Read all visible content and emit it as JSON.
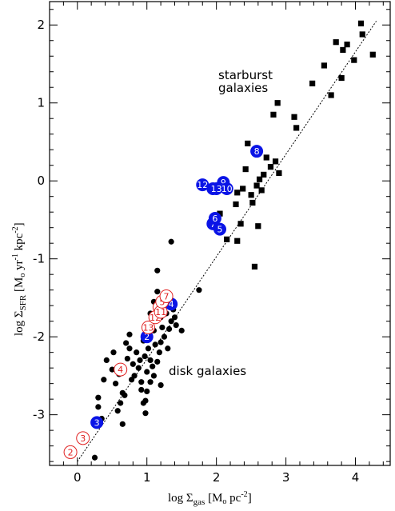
{
  "chart_data": {
    "type": "scatter",
    "xlabel_main": "log Σ",
    "xlabel_sub": "gas",
    "xlabel_rest": " [M",
    "xlabel_sun": "o",
    "xlabel_unit": " pc",
    "xlabel_exp": "-2",
    "xlabel_close": "]",
    "ylabel_main": "log Σ",
    "ylabel_sub": "SFR",
    "ylabel_rest": " [M",
    "ylabel_sun": "o",
    "ylabel_unit1": " yr",
    "ylabel_exp1": "-1",
    "ylabel_unit2": " kpc",
    "ylabel_exp2": "-2",
    "ylabel_close": "]",
    "xlim": [
      -0.4,
      4.5
    ],
    "ylim": [
      -3.65,
      2.3
    ],
    "xticks": [
      0,
      1,
      2,
      3,
      4
    ],
    "xtick_labels": [
      "0",
      "1",
      "2",
      "3",
      "4"
    ],
    "yticks": [
      -3,
      -2,
      -1,
      0,
      1,
      2
    ],
    "ytick_labels": [
      "-3",
      "-2",
      "-1",
      "0",
      "1",
      "2"
    ],
    "grid": false,
    "fit_line": {
      "x": [
        0,
        4.3
      ],
      "y": [
        -3.6,
        2.05
      ],
      "style": "dotted"
    },
    "annotations": {
      "starburst_line1": "starburst",
      "starburst_line2": "galaxies",
      "disk": "disk galaxies"
    },
    "colors": {
      "disk": "#000000",
      "starburst": "#000000",
      "blue": "#0a14e6",
      "red": "#e02020"
    },
    "series": [
      {
        "marker": "circle-filled-black",
        "points": [
          [
            0.25,
            -3.55
          ],
          [
            0.35,
            -3.05
          ],
          [
            0.3,
            -2.9
          ],
          [
            0.3,
            -2.78
          ],
          [
            0.38,
            -2.55
          ],
          [
            0.42,
            -2.3
          ],
          [
            0.5,
            -2.42
          ],
          [
            0.52,
            -2.2
          ],
          [
            0.55,
            -2.6
          ],
          [
            0.6,
            -2.48
          ],
          [
            0.58,
            -2.95
          ],
          [
            0.65,
            -3.12
          ],
          [
            0.68,
            -2.75
          ],
          [
            0.7,
            -2.08
          ],
          [
            0.72,
            -2.28
          ],
          [
            0.75,
            -2.15
          ],
          [
            0.78,
            -2.55
          ],
          [
            0.8,
            -2.35
          ],
          [
            0.82,
            -2.5
          ],
          [
            0.85,
            -2.2
          ],
          [
            0.88,
            -2.4
          ],
          [
            0.9,
            -2.3
          ],
          [
            0.92,
            -2.58
          ],
          [
            0.95,
            -2.05
          ],
          [
            0.95,
            -2.85
          ],
          [
            0.97,
            -2.25
          ],
          [
            1.0,
            -1.95
          ],
          [
            1.0,
            -2.45
          ],
          [
            1.0,
            -2.7
          ],
          [
            1.02,
            -2.15
          ],
          [
            1.05,
            -2.3
          ],
          [
            1.05,
            -2.58
          ],
          [
            1.08,
            -2.38
          ],
          [
            1.1,
            -1.92
          ],
          [
            1.1,
            -2.5
          ],
          [
            1.12,
            -2.1
          ],
          [
            1.15,
            -2.32
          ],
          [
            1.18,
            -2.2
          ],
          [
            1.2,
            -1.75
          ],
          [
            1.2,
            -2.62
          ],
          [
            1.22,
            -1.88
          ],
          [
            1.25,
            -2.0
          ],
          [
            1.28,
            -1.7
          ],
          [
            1.3,
            -1.55
          ],
          [
            1.32,
            -1.9
          ],
          [
            1.35,
            -1.8
          ],
          [
            1.38,
            -1.65
          ],
          [
            1.4,
            -1.75
          ],
          [
            1.42,
            -1.85
          ],
          [
            1.5,
            -1.92
          ],
          [
            1.05,
            -1.7
          ],
          [
            1.1,
            -1.55
          ],
          [
            1.12,
            -1.78
          ],
          [
            1.15,
            -1.42
          ],
          [
            1.15,
            -1.15
          ],
          [
            0.98,
            -2.82
          ],
          [
            0.98,
            -2.98
          ],
          [
            0.92,
            -2.68
          ],
          [
            0.62,
            -2.85
          ],
          [
            0.65,
            -2.72
          ],
          [
            1.35,
            -0.78
          ],
          [
            1.75,
            -1.4
          ],
          [
            0.75,
            -1.97
          ],
          [
            1.2,
            -2.07
          ],
          [
            1.3,
            -2.15
          ]
        ]
      },
      {
        "marker": "square-filled-black",
        "points": [
          [
            2.05,
            -0.42
          ],
          [
            2.15,
            -0.75
          ],
          [
            2.28,
            -0.3
          ],
          [
            2.3,
            -0.15
          ],
          [
            2.35,
            -0.55
          ],
          [
            2.38,
            -0.1
          ],
          [
            2.42,
            0.15
          ],
          [
            2.45,
            0.48
          ],
          [
            2.5,
            -0.18
          ],
          [
            2.52,
            -0.28
          ],
          [
            2.55,
            -1.1
          ],
          [
            2.58,
            -0.06
          ],
          [
            2.6,
            -0.58
          ],
          [
            2.62,
            0.02
          ],
          [
            2.65,
            -0.12
          ],
          [
            2.68,
            0.08
          ],
          [
            2.72,
            0.3
          ],
          [
            2.78,
            0.18
          ],
          [
            2.82,
            0.85
          ],
          [
            2.85,
            0.25
          ],
          [
            2.88,
            1.0
          ],
          [
            2.9,
            0.1
          ],
          [
            3.12,
            0.82
          ],
          [
            3.15,
            0.68
          ],
          [
            3.38,
            1.25
          ],
          [
            3.55,
            1.48
          ],
          [
            3.65,
            1.1
          ],
          [
            3.72,
            1.78
          ],
          [
            3.8,
            1.32
          ],
          [
            3.82,
            1.68
          ],
          [
            3.88,
            1.75
          ],
          [
            3.98,
            1.55
          ],
          [
            4.08,
            2.02
          ],
          [
            4.1,
            1.88
          ],
          [
            4.25,
            1.62
          ],
          [
            2.3,
            -0.77
          ]
        ]
      }
    ],
    "labeled_points": [
      {
        "x": 0.28,
        "y": -3.1,
        "label": "3",
        "style": "blue"
      },
      {
        "x": 1.0,
        "y": -2.0,
        "label": "2",
        "style": "blue"
      },
      {
        "x": 1.35,
        "y": -1.58,
        "label": "4",
        "style": "blue"
      },
      {
        "x": 1.95,
        "y": -0.55,
        "label": "7",
        "style": "blue"
      },
      {
        "x": 1.98,
        "y": -0.48,
        "label": "6",
        "style": "blue"
      },
      {
        "x": 2.05,
        "y": -0.62,
        "label": "5",
        "style": "blue"
      },
      {
        "x": 1.8,
        "y": -0.05,
        "label": "12",
        "style": "blue"
      },
      {
        "x": 1.95,
        "y": -0.1,
        "label": "8",
        "style": "blue"
      },
      {
        "x": 2.1,
        "y": -0.02,
        "label": "9",
        "style": "blue"
      },
      {
        "x": 2.15,
        "y": -0.1,
        "label": "10",
        "style": "blue"
      },
      {
        "x": 2.0,
        "y": -0.1,
        "label": "13",
        "style": "blue"
      },
      {
        "x": 2.58,
        "y": 0.38,
        "label": "8",
        "style": "blue"
      },
      {
        "x": -0.1,
        "y": -3.48,
        "label": "2",
        "style": "red"
      },
      {
        "x": 0.08,
        "y": -3.3,
        "label": "3",
        "style": "red"
      },
      {
        "x": 0.62,
        "y": -2.42,
        "label": "4",
        "style": "red"
      },
      {
        "x": 1.02,
        "y": -1.88,
        "label": "13",
        "style": "red"
      },
      {
        "x": 1.12,
        "y": -1.75,
        "label": "12",
        "style": "red"
      },
      {
        "x": 1.18,
        "y": -1.62,
        "label": "1",
        "style": "red"
      },
      {
        "x": 1.2,
        "y": -1.68,
        "label": "11",
        "style": "red"
      },
      {
        "x": 1.22,
        "y": -1.55,
        "label": "5",
        "style": "red"
      },
      {
        "x": 1.28,
        "y": -1.48,
        "label": "7",
        "style": "red"
      }
    ]
  }
}
